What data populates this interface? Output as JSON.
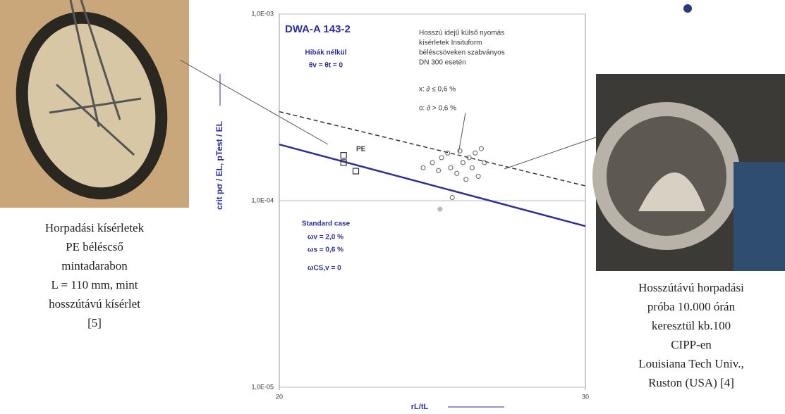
{
  "chart_data": {
    "type": "scatter",
    "log_y": true,
    "grid": true,
    "title": "DWA-A 143-2",
    "xlabel": "rL/tL",
    "ylabel": "crit pσ / EL, pTest / EL",
    "xlim": [
      20,
      30
    ],
    "xticks": [
      20,
      30
    ],
    "ylim": [
      1e-05,
      0.001
    ],
    "yticks": [
      {
        "value": 1e-05,
        "label": "1,0E-05"
      },
      {
        "value": 0.0001,
        "label": "1,0E-04"
      },
      {
        "value": 0.001,
        "label": "1,0E-03"
      }
    ],
    "annotations": [
      "Hibák nélkül",
      "θv = θt = 0",
      "Standard case",
      "ωv = 2,0 %",
      "ωs = 0,6 %",
      "ωCS,v = 0",
      "Hosszú idejű külső nyomás",
      "kísérletek Insituform",
      "béléscsöveken szabványos",
      "DN 300 esetén",
      "x: ∂ ≤ 0,6 %",
      "o: ∂ > 0,6 %",
      "PE"
    ],
    "series": [
      {
        "marker": "line",
        "dash": false,
        "color": "#2e3192",
        "x": [
          20,
          30
        ],
        "values": [
          0.0002,
          7.3e-05
        ]
      },
      {
        "marker": "line",
        "dash": true,
        "color": "#333333",
        "x": [
          20,
          30
        ],
        "values": [
          0.0003,
          0.00012
        ]
      },
      {
        "marker": "square",
        "color": "#333333",
        "x": [
          22.1,
          22.1,
          22.5
        ],
        "values": [
          0.000175,
          0.00016,
          0.000144
        ]
      },
      {
        "marker": "circle",
        "color": "#777777",
        "x": [
          24.7,
          25.0,
          25.3,
          25.5,
          25.6,
          25.8,
          25.9,
          26.0,
          26.1,
          26.2,
          26.3,
          26.4,
          26.5,
          26.6,
          26.7,
          25.2,
          25.65
        ],
        "values": [
          0.00015,
          0.00016,
          0.00017,
          0.00018,
          0.00015,
          0.00014,
          0.000185,
          0.00016,
          0.00013,
          0.00017,
          0.00015,
          0.00018,
          0.000135,
          0.00019,
          0.00016,
          0.000145,
          0.000104
        ]
      },
      {
        "marker": "circle",
        "color": "#bbbbbb",
        "fill": true,
        "x": [
          25.25
        ],
        "values": [
          9e-05
        ]
      }
    ]
  },
  "captions": {
    "left": [
      "Horpadási kísérletek",
      "PE béléscső",
      "mintadarabon",
      "L = 110 mm, mint",
      "hosszútávú kísérlet",
      "[5]"
    ],
    "right": [
      "Hosszútávú horpadási",
      "próba 10.000 órán",
      "keresztül kb.100",
      "CIPP-en",
      "Louisiana Tech Univ.,",
      "Ruston (USA) [4]"
    ]
  }
}
